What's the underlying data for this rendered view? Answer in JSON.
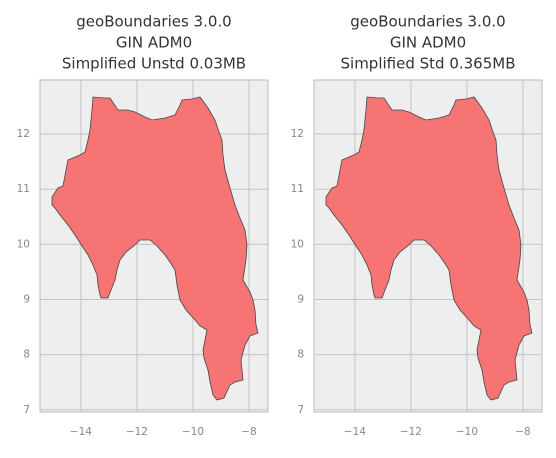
{
  "chart_data": [
    {
      "type": "map",
      "title": [
        "geoBoundaries 3.0.0",
        "GIN ADM0",
        "Simplified Unstd 0.03MB"
      ],
      "color": "#f77474",
      "grid": true,
      "xlim": [
        -15.46,
        -7.32
      ],
      "ylim": [
        6.96,
        12.98
      ],
      "xticks": [
        {
          "value": -14,
          "label": "−14"
        },
        {
          "value": -12,
          "label": "−12"
        },
        {
          "value": -10,
          "label": "−10"
        },
        {
          "value": -8,
          "label": "−8"
        }
      ],
      "yticks": [
        7,
        8,
        9,
        10,
        11,
        12
      ]
    },
    {
      "type": "map",
      "title": [
        "geoBoundaries 3.0.0",
        "GIN ADM0",
        "Simplified Std 0.365MB"
      ],
      "color": "#f77474",
      "grid": true,
      "xlim": [
        -15.46,
        -7.32
      ],
      "ylim": [
        6.96,
        12.98
      ],
      "xticks": [
        {
          "value": -14,
          "label": "−14"
        },
        {
          "value": -12,
          "label": "−12"
        },
        {
          "value": -10,
          "label": "−10"
        },
        {
          "value": -8,
          "label": "−8"
        }
      ],
      "yticks": [
        7,
        8,
        9,
        10,
        11,
        12
      ]
    }
  ]
}
